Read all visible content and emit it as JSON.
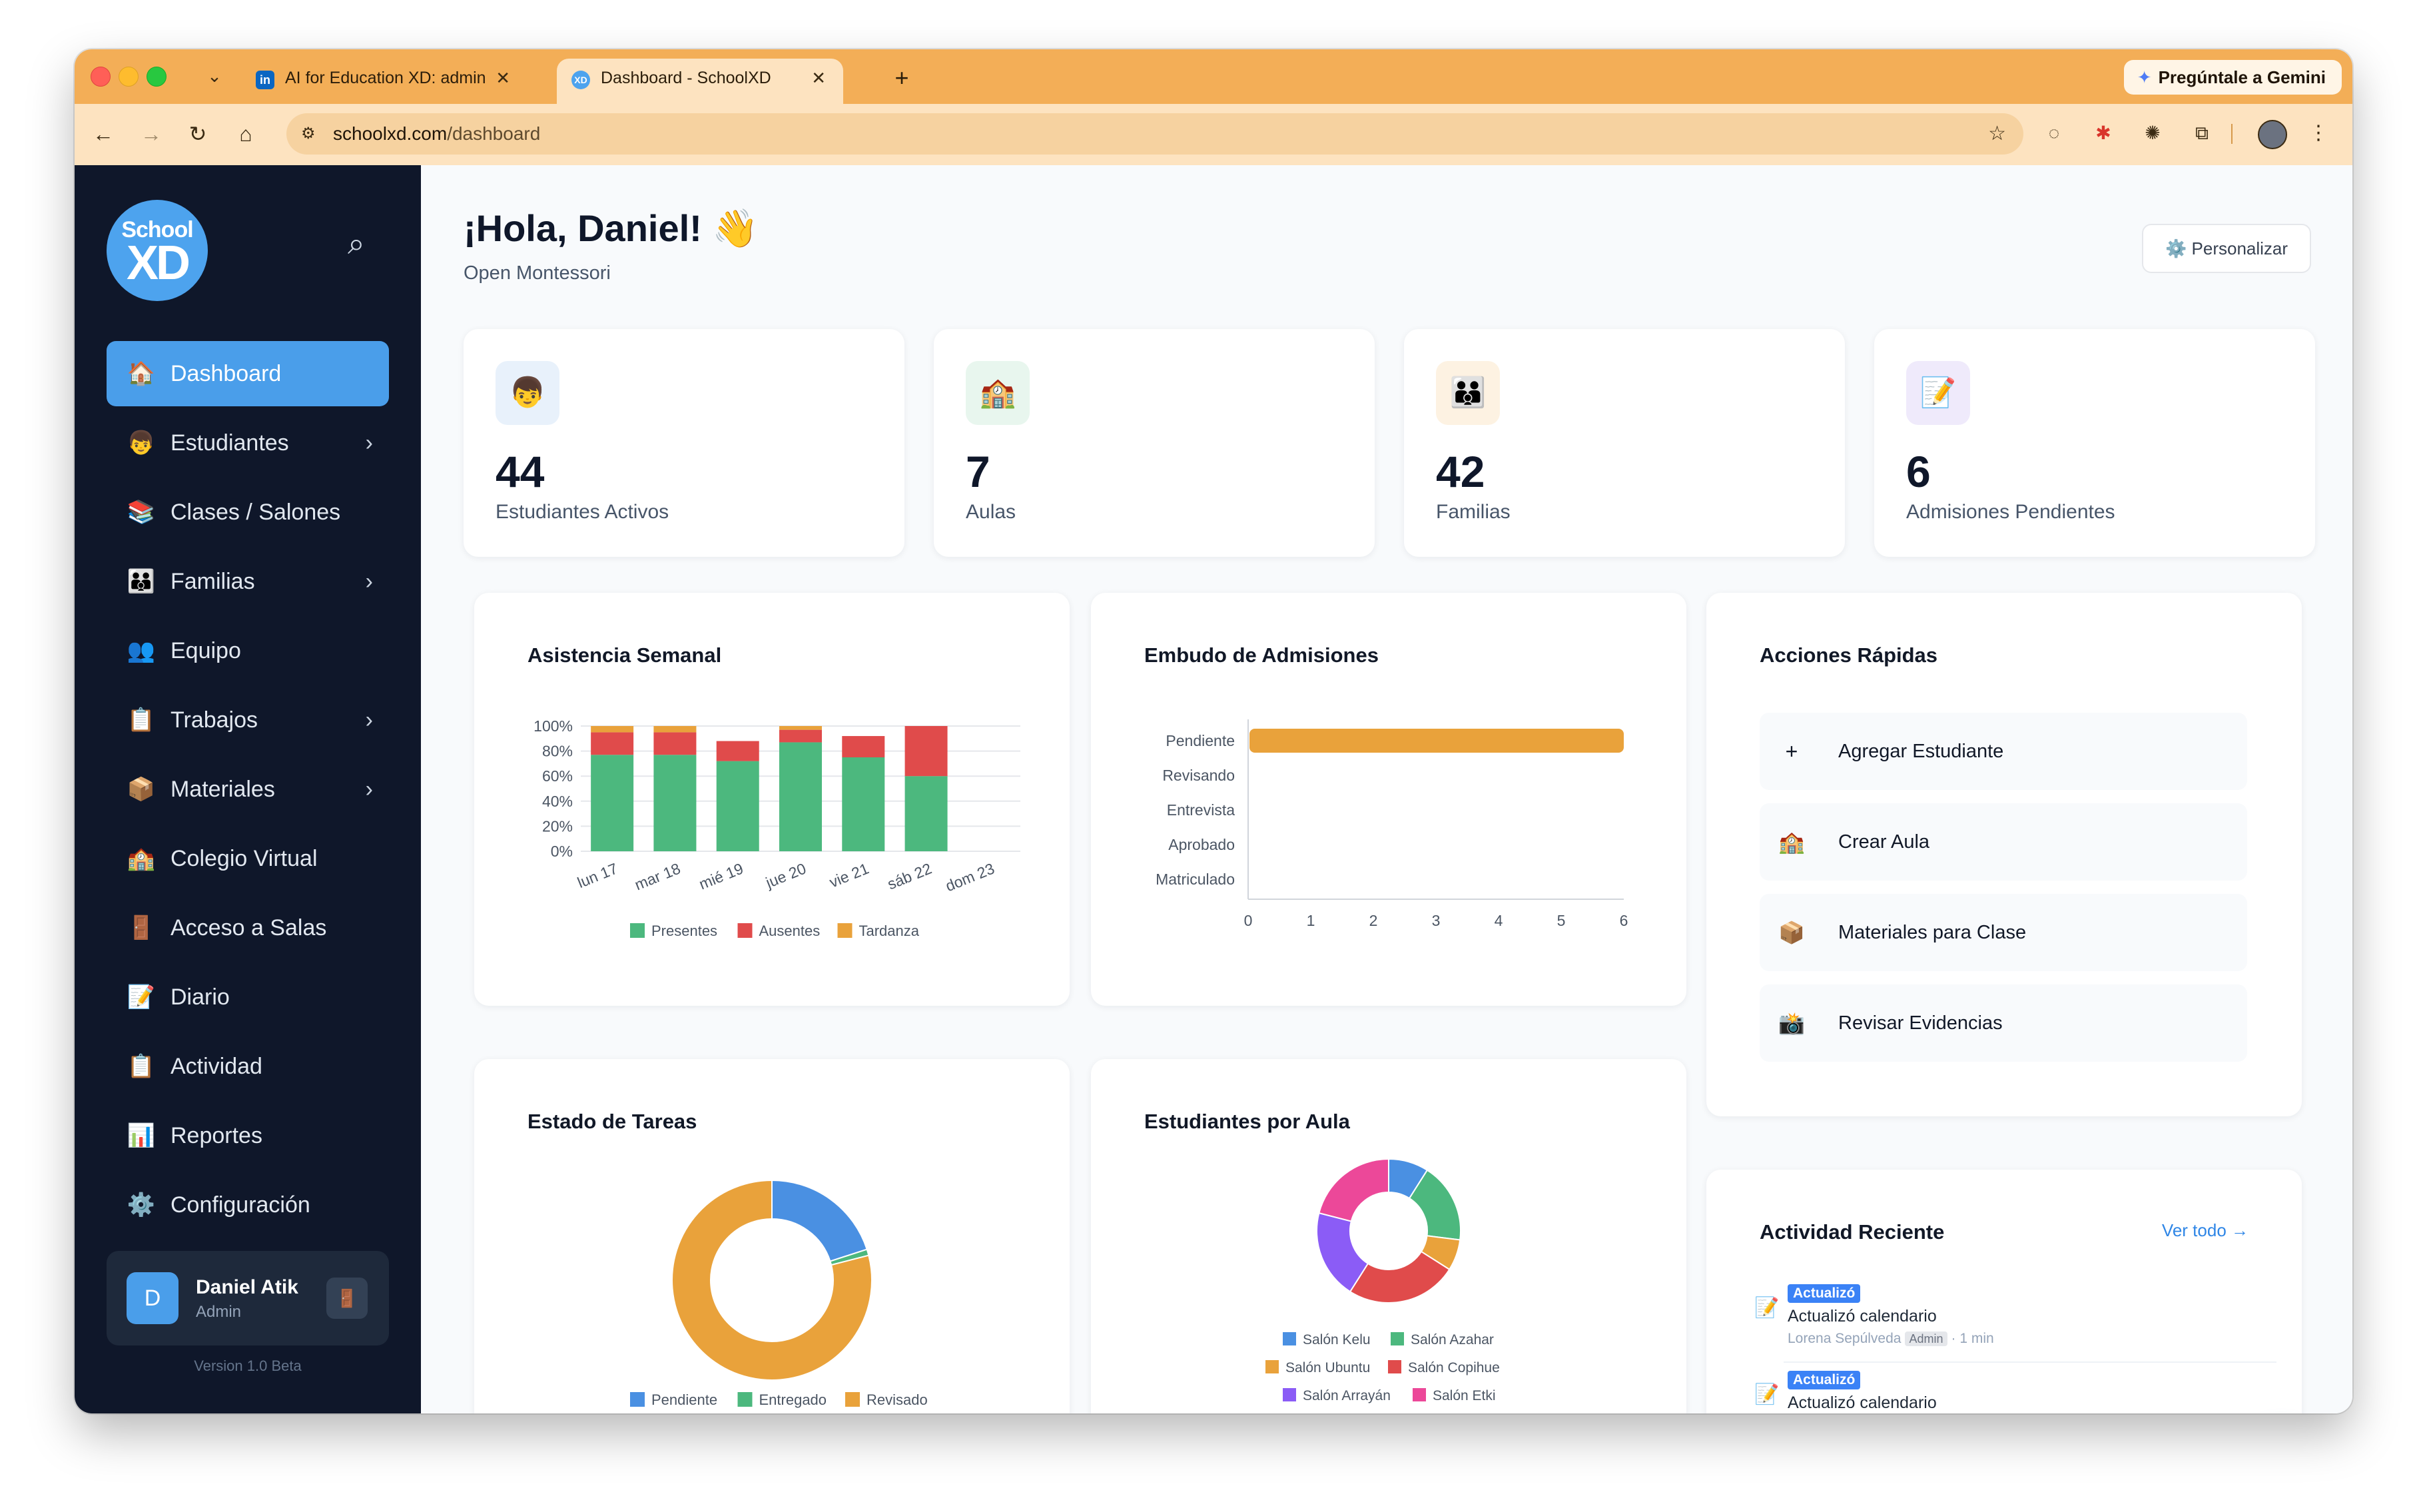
{
  "browser": {
    "tabs": [
      {
        "title": "AI for Education XD: administ",
        "favicon": "in"
      },
      {
        "title": "Dashboard - SchoolXD",
        "favicon": "XD"
      }
    ],
    "gemini_label": "Pregúntale a Gemini",
    "url_host": "schoolxd.com",
    "url_path": "/dashboard"
  },
  "sidebar": {
    "logo_top": "School",
    "logo_bottom": "XD",
    "items": [
      {
        "label": "Dashboard",
        "icon": "🏠",
        "icon_name": "house-icon",
        "chevron": ""
      },
      {
        "label": "Estudiantes",
        "icon": "👦",
        "icon_name": "student-icon",
        "chevron": "›"
      },
      {
        "label": "Clases / Salones",
        "icon": "📚",
        "icon_name": "books-icon",
        "chevron": ""
      },
      {
        "label": "Familias",
        "icon": "👪",
        "icon_name": "family-icon",
        "chevron": "›"
      },
      {
        "label": "Equipo",
        "icon": "👥",
        "icon_name": "team-icon",
        "chevron": ""
      },
      {
        "label": "Trabajos",
        "icon": "📋",
        "icon_name": "clipboard-icon",
        "chevron": "›"
      },
      {
        "label": "Materiales",
        "icon": "📦",
        "icon_name": "box-icon",
        "chevron": "›"
      },
      {
        "label": "Colegio Virtual",
        "icon": "🏫",
        "icon_name": "school-icon",
        "chevron": ""
      },
      {
        "label": "Acceso a Salas",
        "icon": "🚪",
        "icon_name": "door-icon",
        "chevron": ""
      },
      {
        "label": "Diario",
        "icon": "📝",
        "icon_name": "memo-icon",
        "chevron": ""
      },
      {
        "label": "Actividad",
        "icon": "📋",
        "icon_name": "clipboard-icon",
        "chevron": ""
      },
      {
        "label": "Reportes",
        "icon": "📊",
        "icon_name": "bar-chart-icon",
        "chevron": ""
      },
      {
        "label": "Configuración",
        "icon": "⚙️",
        "icon_name": "gear-icon",
        "chevron": ""
      }
    ],
    "user": {
      "initial": "D",
      "name": "Daniel Atik",
      "role": "Admin"
    },
    "version": "Version 1.0 Beta"
  },
  "header": {
    "greeting": "¡Hola, Daniel! 👋",
    "org": "Open Montessori",
    "customize": "⚙️ Personalizar"
  },
  "stats": [
    {
      "value": "44",
      "label": "Estudiantes Activos",
      "icon": "👦",
      "bg": "#e8f1fb"
    },
    {
      "value": "7",
      "label": "Aulas",
      "icon": "🏫",
      "bg": "#e8f6ee"
    },
    {
      "value": "42",
      "label": "Familias",
      "icon": "👪",
      "bg": "#fdf2e2"
    },
    {
      "value": "6",
      "label": "Admisiones Pendientes",
      "icon": "📝",
      "bg": "#efeafb"
    }
  ],
  "panels": {
    "attendance": "Asistencia Semanal",
    "funnel": "Embudo de Admisiones",
    "tasks": "Estado de Tareas",
    "byroom": "Estudiantes por Aula",
    "quick": "Acciones Rápidas",
    "recent": "Actividad Reciente"
  },
  "quick_actions": [
    {
      "label": "Agregar Estudiante",
      "icon": "+"
    },
    {
      "label": "Crear Aula",
      "icon": "🏫"
    },
    {
      "label": "Materiales para Clase",
      "icon": "📦"
    },
    {
      "label": "Revisar Evidencias",
      "icon": "📸"
    }
  ],
  "recent": {
    "see_all": "Ver todo →",
    "items": [
      {
        "badge": "Actualizó",
        "text": "Actualizó calendario",
        "user": "Lorena Sepúlveda",
        "role": "Admin",
        "time": "· 1 min"
      },
      {
        "badge": "Actualizó",
        "text": "Actualizó calendario",
        "user": "",
        "role": "",
        "time": ""
      }
    ]
  },
  "colors": {
    "blue": "#4a90e2",
    "green": "#4cb87e",
    "red": "#e04b4b",
    "orange": "#e9a23b",
    "purple": "#8b5cf6",
    "pink": "#ec4899"
  },
  "chart_data": [
    {
      "type": "bar",
      "stacked": true,
      "categories": [
        "lun 17",
        "mar 18",
        "mié 19",
        "jue 20",
        "vie 21",
        "sáb 22",
        "dom 23"
      ],
      "series": [
        {
          "name": "Presentes",
          "values": [
            77,
            77,
            72,
            87,
            75,
            60,
            0
          ]
        },
        {
          "name": "Ausentes",
          "values": [
            18,
            18,
            16,
            10,
            17,
            40,
            0
          ]
        },
        {
          "name": "Tardanza",
          "values": [
            5,
            5,
            0,
            3,
            0,
            0,
            0
          ]
        }
      ],
      "yticks": [
        "0%",
        "20%",
        "40%",
        "60%",
        "80%",
        "100%"
      ],
      "ylim": [
        0,
        100
      ]
    },
    {
      "type": "bar",
      "orientation": "horizontal",
      "categories": [
        "Pendiente",
        "Revisando",
        "Entrevista",
        "Aprobado",
        "Matriculado"
      ],
      "values": [
        6,
        0,
        0,
        0,
        0
      ],
      "xticks": [
        "0",
        "1",
        "2",
        "3",
        "4",
        "5",
        "6"
      ],
      "xlim": [
        0,
        6
      ]
    },
    {
      "type": "pie",
      "donut": true,
      "labels": [
        "Pendiente",
        "Entregado",
        "Revisado"
      ],
      "values": [
        20,
        1,
        79
      ]
    },
    {
      "type": "pie",
      "donut": true,
      "labels": [
        "Salón Kelu",
        "Salón Azahar",
        "Salón Ubuntu",
        "Salón Copihue",
        "Salón Arrayán",
        "Salón Etki"
      ],
      "values": [
        9,
        18,
        7,
        25,
        20,
        21
      ]
    }
  ]
}
